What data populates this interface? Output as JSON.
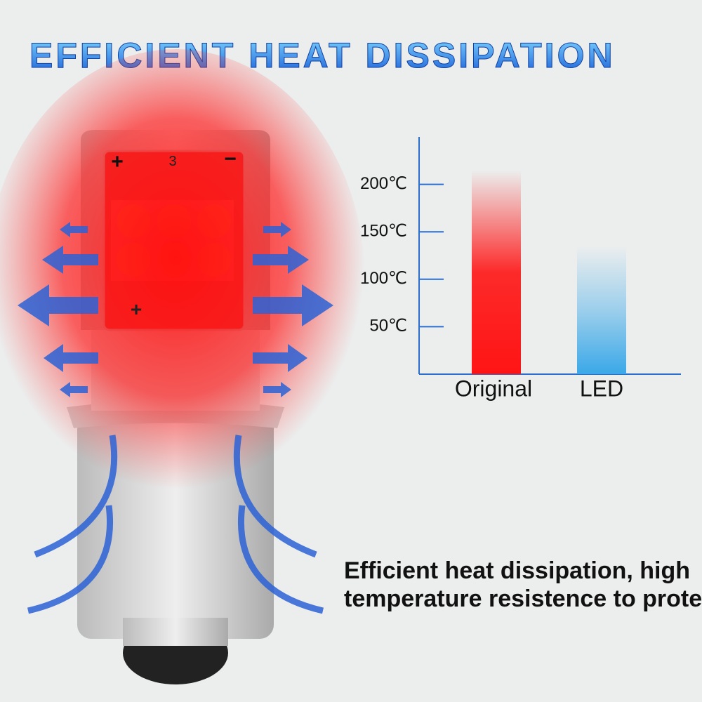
{
  "header": {
    "title": "EFFICIENT HEAT DISSIPATION"
  },
  "bulb": {
    "marking": "3",
    "plus": "+",
    "minus": "−",
    "plus_lower": "+"
  },
  "caption": {
    "line1": "Efficient heat dissipation, high",
    "line2": "temperature resistence to prote"
  },
  "chart_data": {
    "type": "bar",
    "categories": [
      "Original",
      "LED"
    ],
    "values": [
      215,
      135
    ],
    "colors": [
      "#ff1414",
      "#3aa8e8"
    ],
    "ylim": [
      0,
      250
    ],
    "yticks": [
      {
        "value": 50,
        "label": "50℃"
      },
      {
        "value": 100,
        "label": "100℃"
      },
      {
        "value": 150,
        "label": "150℃"
      },
      {
        "value": 200,
        "label": "200℃"
      }
    ]
  }
}
